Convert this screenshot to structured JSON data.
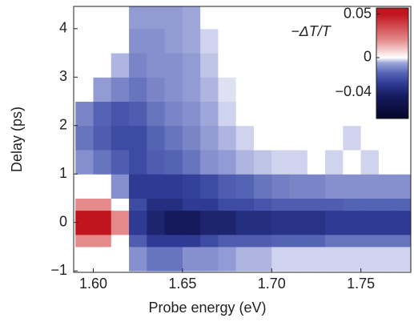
{
  "chart_data": {
    "type": "heatmap",
    "xlabel": "Probe energy (eV)",
    "ylabel": "Delay (ps)",
    "colorbar_label": "−ΔT/T",
    "xlim": [
      1.589,
      1.778
    ],
    "ylim": [
      -1.03,
      4.46
    ],
    "xticks": [
      {
        "value": 1.6,
        "label": "1.60"
      },
      {
        "value": 1.65,
        "label": "1.65"
      },
      {
        "value": 1.7,
        "label": "1.70"
      },
      {
        "value": 1.75,
        "label": "1.75"
      }
    ],
    "yticks": [
      {
        "value": -1,
        "label": "−1"
      },
      0,
      1,
      2,
      3,
      4
    ],
    "cblim": [
      -0.07,
      0.057
    ],
    "cbticks": [
      0.05,
      0,
      {
        "value": -0.04,
        "label": "−0.04"
      }
    ],
    "colorscale": [
      [
        -0.07,
        "#05052a"
      ],
      [
        -0.045,
        "#141a5c"
      ],
      [
        -0.03,
        "#2e3a94"
      ],
      [
        -0.018,
        "#5563b5"
      ],
      [
        -0.006,
        "#9ea6da"
      ],
      [
        0,
        "#ffffff"
      ],
      [
        0.02,
        "#e48a8a"
      ],
      [
        0.05,
        "#c0141e"
      ]
    ],
    "xbins": [
      1.59,
      1.6,
      1.61,
      1.62,
      1.63,
      1.64,
      1.65,
      1.66,
      1.67,
      1.68,
      1.69,
      1.7,
      1.71,
      1.72,
      1.73,
      1.74,
      1.75,
      1.76,
      1.77,
      1.78
    ],
    "ybins": [
      -1,
      -0.5,
      -0.25,
      0.25,
      0.5,
      1,
      1.5,
      2,
      2.5,
      3,
      3.5,
      4,
      4.5
    ],
    "z": [
      [
        0,
        0,
        0,
        -0.01,
        -0.015,
        -0.015,
        -0.01,
        -0.01,
        -0.008,
        -0.005,
        -0.005,
        -0.003,
        -0.003,
        -0.003,
        -0.003,
        -0.003,
        -0.003,
        -0.003,
        -0.003
      ],
      [
        0.02,
        0.02,
        0,
        -0.02,
        -0.03,
        -0.03,
        -0.03,
        -0.025,
        -0.02,
        -0.02,
        -0.02,
        -0.018,
        -0.018,
        -0.018,
        -0.015,
        -0.015,
        -0.015,
        -0.015,
        -0.015
      ],
      [
        0.05,
        0.05,
        0.02,
        -0.03,
        -0.04,
        -0.045,
        -0.045,
        -0.04,
        -0.04,
        -0.035,
        -0.035,
        -0.033,
        -0.033,
        -0.033,
        -0.03,
        -0.03,
        -0.03,
        -0.03,
        -0.03
      ],
      [
        0.02,
        0.02,
        0,
        -0.025,
        -0.035,
        -0.035,
        -0.03,
        -0.03,
        -0.025,
        -0.025,
        -0.022,
        -0.02,
        -0.02,
        -0.02,
        -0.02,
        -0.018,
        -0.018,
        -0.018,
        -0.018
      ],
      [
        0,
        0,
        -0.01,
        -0.03,
        -0.03,
        -0.03,
        -0.028,
        -0.025,
        -0.02,
        -0.018,
        -0.015,
        -0.013,
        -0.012,
        -0.012,
        -0.01,
        -0.01,
        -0.01,
        -0.01,
        -0.01
      ],
      [
        -0.01,
        -0.015,
        -0.02,
        -0.025,
        -0.02,
        -0.018,
        -0.015,
        -0.01,
        -0.008,
        -0.005,
        -0.004,
        -0.003,
        -0.003,
        0,
        -0.003,
        0,
        -0.003,
        0,
        0
      ],
      [
        -0.015,
        -0.02,
        -0.025,
        -0.025,
        -0.018,
        -0.015,
        -0.012,
        -0.008,
        -0.005,
        -0.003,
        0,
        0,
        0,
        0,
        0,
        -0.003,
        0,
        0,
        0
      ],
      [
        -0.012,
        -0.018,
        -0.022,
        -0.02,
        -0.015,
        -0.012,
        -0.01,
        -0.006,
        -0.003,
        0,
        0,
        0,
        0,
        0,
        0,
        0,
        0,
        0,
        0
      ],
      [
        0,
        -0.008,
        -0.012,
        -0.015,
        -0.012,
        -0.01,
        -0.008,
        -0.005,
        -0.002,
        0,
        0,
        0,
        0,
        0,
        0,
        0,
        0,
        0,
        0
      ],
      [
        0,
        0,
        -0.005,
        -0.012,
        -0.01,
        -0.01,
        -0.008,
        -0.004,
        0,
        0,
        0,
        0,
        0,
        0,
        0,
        0,
        0,
        0,
        0
      ],
      [
        0,
        0,
        0,
        -0.01,
        -0.01,
        -0.008,
        -0.006,
        -0.003,
        0,
        0,
        0,
        0,
        0,
        0,
        0,
        0,
        0,
        0,
        0
      ],
      [
        0,
        0,
        0,
        -0.008,
        -0.008,
        -0.008,
        -0.006,
        0,
        0,
        0,
        0,
        0,
        0,
        0,
        0,
        0,
        0,
        0,
        0
      ]
    ]
  }
}
